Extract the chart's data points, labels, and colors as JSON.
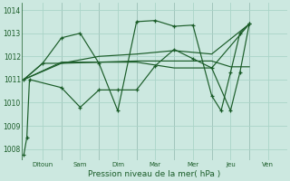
{
  "xlabel": "Pression niveau de la mer( hPa )",
  "ylim": [
    1007.5,
    1014.3
  ],
  "yticks": [
    1008,
    1009,
    1010,
    1011,
    1012,
    1013,
    1014
  ],
  "x_labels": [
    "Ditoun",
    "Sam",
    "Dim",
    "Mar",
    "Mer",
    "Jeu",
    "Ven"
  ],
  "bg_color": "#cce8e0",
  "grid_color": "#aad4c8",
  "line_color": "#1a5c28",
  "line1_x": [
    0,
    0.08,
    0.15,
    1.0,
    1.5,
    2.0,
    2.5,
    3.0,
    3.5,
    4.0,
    4.5,
    5.0,
    5.5,
    5.75,
    6.0
  ],
  "line1_y": [
    1007.75,
    1008.5,
    1011.0,
    1010.65,
    1009.8,
    1010.55,
    1010.55,
    1010.55,
    1011.6,
    1012.3,
    1011.9,
    1011.5,
    1009.65,
    1011.3,
    1013.4
  ],
  "line2_x": [
    0,
    0.5,
    1.0,
    2.0,
    3.0,
    4.0,
    5.0,
    5.5,
    6.0
  ],
  "line2_y": [
    1011.0,
    1011.7,
    1011.7,
    1011.75,
    1011.8,
    1011.8,
    1011.8,
    1011.55,
    1011.55
  ],
  "line3_x": [
    0,
    1.0,
    2.0,
    3.0,
    4.0,
    5.0,
    6.0
  ],
  "line3_y": [
    1011.0,
    1011.7,
    1012.0,
    1012.1,
    1012.25,
    1012.1,
    1013.4
  ],
  "line4_x": [
    0,
    0.5,
    1.0,
    1.5,
    2.0,
    2.5,
    3.0,
    3.5,
    4.0,
    4.5,
    5.0,
    5.25,
    5.5,
    5.75,
    6.0
  ],
  "line4_y": [
    1011.0,
    1011.7,
    1012.8,
    1013.0,
    1011.7,
    1009.65,
    1013.5,
    1013.55,
    1013.3,
    1013.35,
    1010.3,
    1009.65,
    1011.3,
    1013.0,
    1013.4
  ],
  "line5_x": [
    0,
    1.0,
    2.0,
    3.0,
    4.0,
    5.0,
    6.0
  ],
  "line5_y": [
    1011.0,
    1011.75,
    1011.75,
    1011.75,
    1011.5,
    1011.5,
    1013.4
  ]
}
